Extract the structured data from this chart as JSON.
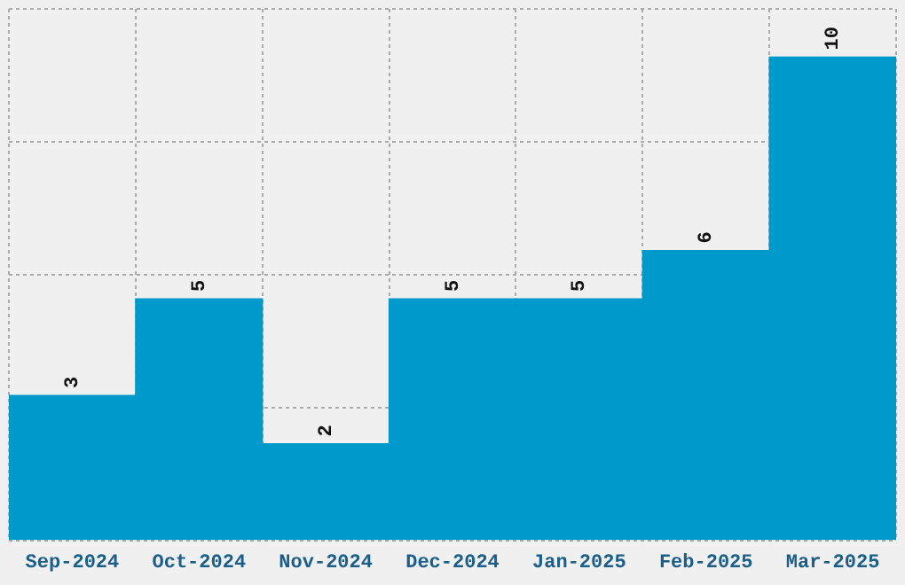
{
  "chart_data": {
    "type": "bar",
    "categories": [
      "Sep-2024",
      "Oct-2024",
      "Nov-2024",
      "Dec-2024",
      "Jan-2025",
      "Feb-2025",
      "Mar-2025"
    ],
    "values": [
      3,
      5,
      2,
      5,
      5,
      6,
      10
    ],
    "color": "#0099cc",
    "ylim": [
      0,
      11
    ],
    "yticks": [
      {
        "value": 0,
        "label": null
      },
      {
        "value": 2.75,
        "label": null
      },
      {
        "value": 5.5,
        "label": null
      },
      {
        "value": 8.25,
        "label": null
      },
      {
        "value": 11,
        "label": null
      }
    ],
    "grid": true,
    "tick_labels": "x",
    "data_labels": true
  }
}
